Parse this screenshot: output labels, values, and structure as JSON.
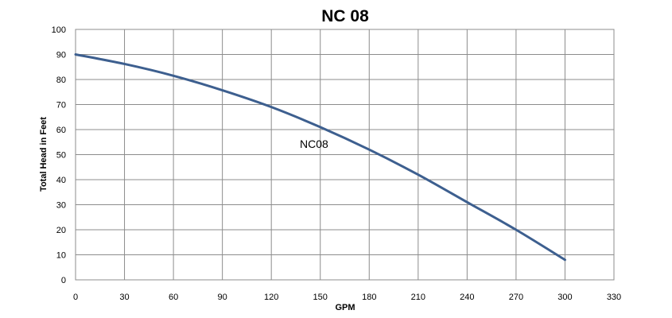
{
  "chart_data": {
    "type": "line",
    "title": "NC 08",
    "xlabel": "GPM",
    "ylabel": "Total Head in Feet",
    "xlim": [
      0,
      330
    ],
    "ylim": [
      0,
      100
    ],
    "xticks": [
      0,
      30,
      60,
      90,
      120,
      150,
      180,
      210,
      240,
      270,
      300,
      330
    ],
    "yticks": [
      0,
      10,
      20,
      30,
      40,
      50,
      60,
      70,
      80,
      90,
      100
    ],
    "grid": true,
    "series": [
      {
        "name": "NC08",
        "color": "#3d5f8f",
        "x": [
          0,
          30,
          60,
          90,
          120,
          150,
          180,
          210,
          240,
          270,
          300
        ],
        "y": [
          90,
          86.2,
          81.5,
          75.7,
          69,
          61,
          52,
          42,
          31,
          20,
          8
        ]
      }
    ]
  }
}
